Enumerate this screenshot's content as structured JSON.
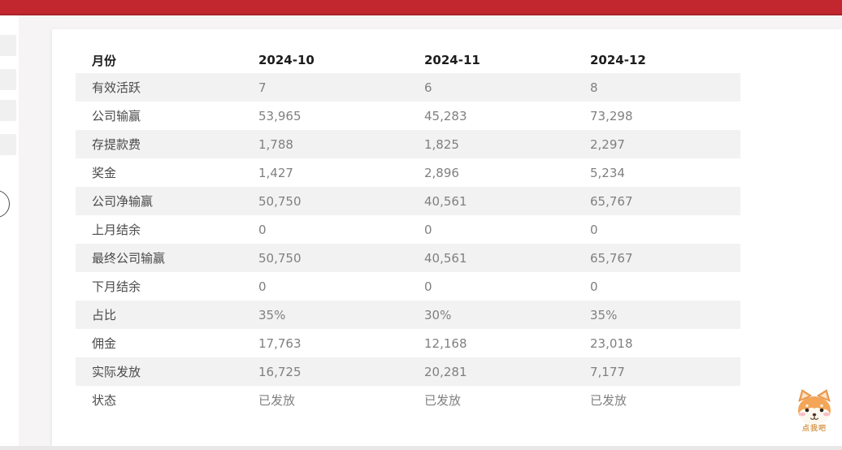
{
  "colors": {
    "topbar": "#c2262e",
    "topbar_edge": "#a8232a",
    "page_bg": "#f6f4f5",
    "card_bg": "#ffffff",
    "row_stripe": "#f2f2f2",
    "header_text": "#1c1c1c",
    "label_text": "#4a4a4a",
    "value_text": "#808080",
    "mascot_caption_color": "#d79a52"
  },
  "report_table": {
    "columns": [
      "月份",
      "2024-10",
      "2024-11",
      "2024-12"
    ],
    "rows": [
      {
        "label": "有效活跃",
        "values": [
          "7",
          "6",
          "8"
        ]
      },
      {
        "label": "公司输赢",
        "values": [
          "53,965",
          "45,283",
          "73,298"
        ]
      },
      {
        "label": "存提款费",
        "values": [
          "1,788",
          "1,825",
          "2,297"
        ]
      },
      {
        "label": "奖金",
        "values": [
          "1,427",
          "2,896",
          "5,234"
        ]
      },
      {
        "label": "公司净输赢",
        "values": [
          "50,750",
          "40,561",
          "65,767"
        ]
      },
      {
        "label": "上月结余",
        "values": [
          "0",
          "0",
          "0"
        ]
      },
      {
        "label": "最终公司输赢",
        "values": [
          "50,750",
          "40,561",
          "65,767"
        ]
      },
      {
        "label": "下月结余",
        "values": [
          "0",
          "0",
          "0"
        ]
      },
      {
        "label": "占比",
        "values": [
          "35%",
          "30%",
          "35%"
        ]
      },
      {
        "label": "佣金",
        "values": [
          "17,763",
          "12,168",
          "23,018"
        ]
      },
      {
        "label": "实际发放",
        "values": [
          "16,725",
          "20,281",
          "7,177"
        ]
      },
      {
        "label": "状态",
        "values": [
          "已发放",
          "已发放",
          "已发放"
        ]
      }
    ]
  },
  "mascot": {
    "icon": "shiba-dog-icon",
    "caption": "点我吧"
  }
}
